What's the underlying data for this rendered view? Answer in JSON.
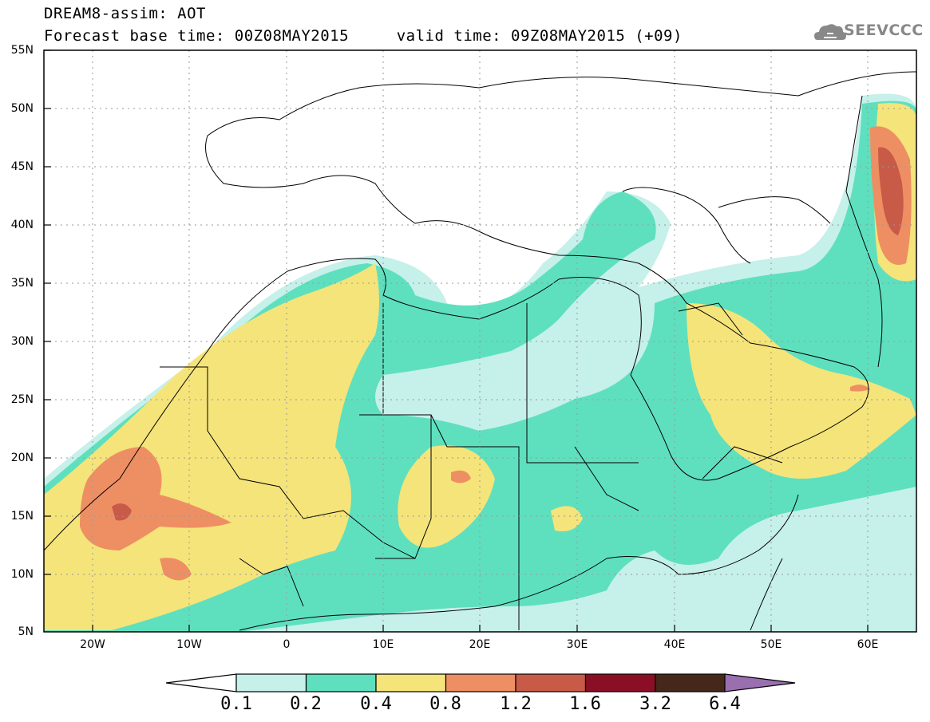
{
  "header": {
    "line1": "DREAM8-assim: AOT",
    "line2": "Forecast base time: 00Z08MAY2015     valid time: 09Z08MAY2015 (+09)"
  },
  "logo": {
    "text": "SEEVCCC",
    "icon": "cloud-logo-icon"
  },
  "map": {
    "lat_labels": [
      "55N",
      "50N",
      "45N",
      "40N",
      "35N",
      "30N",
      "25N",
      "20N",
      "15N",
      "10N",
      "5N"
    ],
    "lon_labels": [
      "20W",
      "10W",
      "0",
      "10E",
      "20E",
      "30E",
      "40E",
      "50E",
      "60E"
    ],
    "colors": {
      "c01": "#c6f0ea",
      "c02": "#5ee0be",
      "c04": "#f5e47a",
      "c08": "#ee8f63",
      "c12": "#c85a48",
      "c16": "#8b0f24",
      "c32": "#46281a",
      "c64": "#9a6fb0"
    }
  },
  "colorbar": {
    "labels": [
      "0.1",
      "0.2",
      "0.4",
      "0.8",
      "1.2",
      "1.6",
      "3.2",
      "6.4"
    ],
    "colors": [
      "#c6f0ea",
      "#5ee0be",
      "#f5e47a",
      "#ee8f63",
      "#c85a48",
      "#8b0f24",
      "#46281a",
      "#9a6fb0"
    ]
  }
}
